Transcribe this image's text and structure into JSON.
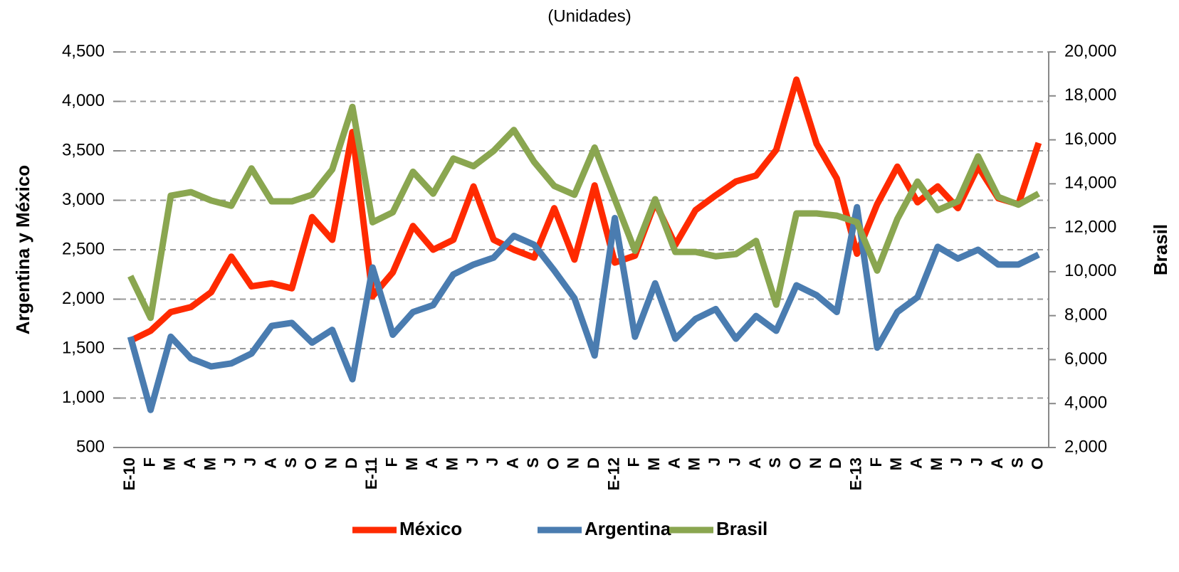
{
  "chart_data": {
    "type": "line",
    "title": "(Unidades)",
    "y_label": "Argentina y México",
    "y2_label": "Brasil",
    "categories": [
      "E-10",
      "F",
      "M",
      "A",
      "M",
      "J",
      "J",
      "A",
      "S",
      "O",
      "N",
      "D",
      "E-11",
      "F",
      "M",
      "A",
      "M",
      "J",
      "J",
      "A",
      "S",
      "O",
      "N",
      "D",
      "E-12",
      "F",
      "M",
      "A",
      "M",
      "J",
      "J",
      "A",
      "S",
      "O",
      "N",
      "D",
      "E-13",
      "F",
      "M",
      "A",
      "M",
      "J",
      "J",
      "A",
      "S",
      "O"
    ],
    "series": [
      {
        "name": "México",
        "color": "#ff2a00",
        "values": [
          1580,
          1680,
          1870,
          1920,
          2070,
          2430,
          2130,
          2160,
          2110,
          2830,
          2600,
          3690,
          2030,
          2270,
          2740,
          2500,
          2600,
          3140,
          2600,
          2500,
          2420,
          2920,
          2400,
          3150,
          2370,
          2440,
          2980,
          2550,
          2900,
          3050,
          3190,
          3250,
          3510,
          4220,
          3570,
          3220,
          2460,
          2960,
          3340,
          2980,
          3140,
          2920,
          3340,
          3020,
          2960,
          3580
        ]
      },
      {
        "name": "Argentina",
        "color": "#4a7cb0",
        "values": [
          1620,
          880,
          1620,
          1400,
          1320,
          1350,
          1450,
          1730,
          1760,
          1560,
          1690,
          1190,
          2320,
          1640,
          1870,
          1940,
          2250,
          2350,
          2420,
          2640,
          2550,
          2290,
          2010,
          1430,
          2820,
          1620,
          2160,
          1600,
          1800,
          1900,
          1600,
          1830,
          1680,
          2140,
          2040,
          1870,
          2930,
          1510,
          1870,
          2020,
          2530,
          2410,
          2500,
          2350,
          2350,
          2450
        ]
      },
      {
        "name": "Brasil",
        "color": "#8aa650",
        "axis": "y2",
        "values": [
          9800,
          7900,
          13460,
          13620,
          13240,
          13000,
          14700,
          13200,
          13200,
          13500,
          14650,
          17500,
          12250,
          12700,
          14550,
          13550,
          15150,
          14800,
          15500,
          16450,
          15000,
          13900,
          13500,
          15650,
          13300,
          10950,
          13300,
          10900,
          10900,
          10700,
          10800,
          11400,
          8500,
          12650,
          12650,
          12550,
          12250,
          10050,
          12400,
          14100,
          12800,
          13200,
          15250,
          13400,
          13050,
          13550
        ]
      }
    ],
    "ylim": [
      500,
      4500
    ],
    "yticks": [
      500,
      {
        "value": 1000,
        "label": "1,000"
      },
      {
        "value": 1500,
        "label": "1,500"
      },
      {
        "value": 2000,
        "label": "2,000"
      },
      {
        "value": 2500,
        "label": "2,500"
      },
      {
        "value": 3000,
        "label": "3,000"
      },
      {
        "value": 3500,
        "label": "3,500"
      },
      {
        "value": 4000,
        "label": "4,000"
      },
      {
        "value": 4500,
        "label": "4,500"
      }
    ],
    "y2lim": [
      2000,
      20000
    ],
    "y2ticks": [
      {
        "value": 2000,
        "label": "2,000"
      },
      {
        "value": 4000,
        "label": "4,000"
      },
      {
        "value": 6000,
        "label": "6,000"
      },
      {
        "value": 8000,
        "label": "8,000"
      },
      {
        "value": 10000,
        "label": "10,000"
      },
      {
        "value": 12000,
        "label": "12,000"
      },
      {
        "value": 14000,
        "label": "14,000"
      },
      {
        "value": 16000,
        "label": "16,000"
      },
      {
        "value": 18000,
        "label": "18,000"
      },
      {
        "value": 20000,
        "label": "20,000"
      }
    ],
    "grid": true,
    "legend": "bottom"
  }
}
